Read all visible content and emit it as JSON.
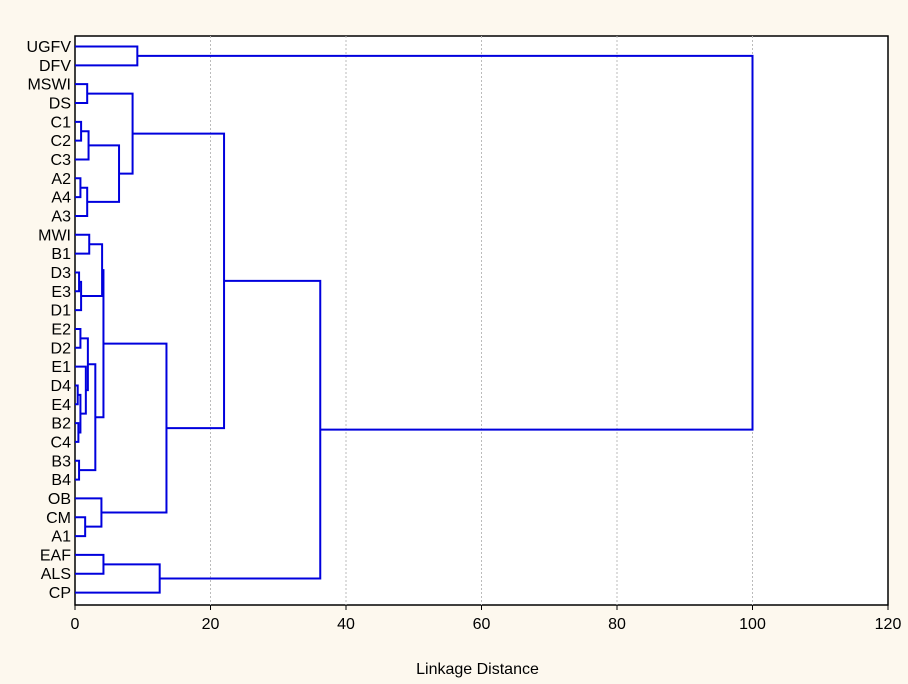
{
  "chart_data": {
    "type": "dendrogram",
    "orientation": "horizontal",
    "title": "",
    "xlabel": "Linkage Distance",
    "ylabel": "",
    "xlim": [
      0,
      120
    ],
    "xticks": [
      0,
      20,
      40,
      60,
      80,
      100,
      120
    ],
    "grid": "vertical dotted",
    "colors": {
      "line": "#0000dd",
      "grid": "#bbbbbb",
      "background": "#fdf8ee",
      "plot_background": "#ffffff"
    },
    "leaves": [
      "UGFV",
      "DFV",
      "MSWI",
      "DS",
      "C1",
      "C2",
      "C3",
      "A2",
      "A4",
      "A3",
      "MWI",
      "B1",
      "D3",
      "E3",
      "D1",
      "E2",
      "D2",
      "E1",
      "D4",
      "E4",
      "B2",
      "C4",
      "B3",
      "B4",
      "OB",
      "CM",
      "A1",
      "EAF",
      "ALS",
      "CP"
    ],
    "merges": [
      {
        "id": "n_ugfv_dfv",
        "left": "UGFV",
        "right": "DFV",
        "height": 9.2
      },
      {
        "id": "n_mswi_ds",
        "left": "MSWI",
        "right": "DS",
        "height": 1.8
      },
      {
        "id": "n_c1_c2",
        "left": "C1",
        "right": "C2",
        "height": 0.9
      },
      {
        "id": "n_c_group",
        "left": "n_c1_c2",
        "right": "C3",
        "height": 2.0
      },
      {
        "id": "n_a2_a4",
        "left": "A2",
        "right": "A4",
        "height": 0.8
      },
      {
        "id": "n_a_group",
        "left": "n_a2_a4",
        "right": "A3",
        "height": 1.8
      },
      {
        "id": "n_ca",
        "left": "n_c_group",
        "right": "n_a_group",
        "height": 6.5
      },
      {
        "id": "n_top_cluster",
        "left": "n_mswi_ds",
        "right": "n_ca",
        "height": 8.5
      },
      {
        "id": "n_d3_e3",
        "left": "D3",
        "right": "E3",
        "height": 0.6
      },
      {
        "id": "n_d3e3_d1",
        "left": "n_d3_e3",
        "right": "D1",
        "height": 0.9
      },
      {
        "id": "n_mwi_b1",
        "left": "MWI",
        "right": "B1",
        "height": 2.1
      },
      {
        "id": "n_mid1",
        "left": "n_mwi_b1",
        "right": "n_d3e3_d1",
        "height": 4.0
      },
      {
        "id": "n_e2_d2",
        "left": "E2",
        "right": "D2",
        "height": 0.8
      },
      {
        "id": "n_d4_e4",
        "left": "D4",
        "right": "E4",
        "height": 0.4
      },
      {
        "id": "n_b2_c4",
        "left": "B2",
        "right": "C4",
        "height": 0.5
      },
      {
        "id": "n_d4e4_b2c4",
        "left": "n_d4_e4",
        "right": "n_b2_c4",
        "height": 0.8
      },
      {
        "id": "n_e1_grp",
        "left": "E1",
        "right": "n_d4e4_b2c4",
        "height": 1.6
      },
      {
        "id": "n_e2d2_grp",
        "left": "n_e2_d2",
        "right": "n_e1_grp",
        "height": 1.9
      },
      {
        "id": "n_b3_b4",
        "left": "B3",
        "right": "B4",
        "height": 0.6
      },
      {
        "id": "n_mid2",
        "left": "n_e2d2_grp",
        "right": "n_b3_b4",
        "height": 3.0
      },
      {
        "id": "n_mid",
        "left": "n_mid1",
        "right": "n_mid2",
        "height": 4.2
      },
      {
        "id": "n_cm_a1",
        "left": "CM",
        "right": "A1",
        "height": 1.5
      },
      {
        "id": "n_ob_grp",
        "left": "OB",
        "right": "n_cm_a1",
        "height": 3.9
      },
      {
        "id": "n_mid_ob",
        "left": "n_mid",
        "right": "n_ob_grp",
        "height": 13.5
      },
      {
        "id": "n_big",
        "left": "n_top_cluster",
        "right": "n_mid_ob",
        "height": 22.0
      },
      {
        "id": "n_eaf_als",
        "left": "EAF",
        "right": "ALS",
        "height": 4.2
      },
      {
        "id": "n_eafals_cp",
        "left": "n_eaf_als",
        "right": "CP",
        "height": 12.5
      },
      {
        "id": "n_big2",
        "left": "n_big",
        "right": "n_eafals_cp",
        "height": 36.2
      },
      {
        "id": "n_root",
        "left": "n_ugfv_dfv",
        "right": "n_big2",
        "height": 100.0
      }
    ]
  }
}
